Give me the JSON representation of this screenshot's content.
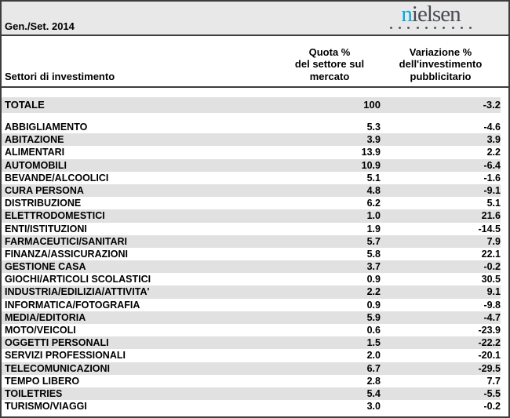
{
  "header": {
    "period": "Gen./Set. 2014",
    "logo": {
      "first_letter": "n",
      "rest": "ielsen",
      "dot_count": 10,
      "blue": "#00a9e0",
      "dark": "#474b52"
    }
  },
  "table": {
    "col1_header": "Settori di investimento",
    "col2_header_lines": [
      "Quota %",
      "del settore sul",
      "mercato"
    ],
    "col3_header_lines": [
      "Variazione %",
      "dell'investimento",
      "pubblicitario"
    ],
    "total": {
      "label": "TOTALE",
      "quota": "100",
      "variazione": "-3.2"
    },
    "rows": [
      {
        "label": "ABBIGLIAMENTO",
        "quota": "5.3",
        "variazione": "-4.6"
      },
      {
        "label": "ABITAZIONE",
        "quota": "3.9",
        "variazione": "3.9"
      },
      {
        "label": "ALIMENTARI",
        "quota": "13.9",
        "variazione": "2.2"
      },
      {
        "label": "AUTOMOBILI",
        "quota": "10.9",
        "variazione": "-6.4"
      },
      {
        "label": "BEVANDE/ALCOOLICI",
        "quota": "5.1",
        "variazione": "-1.6"
      },
      {
        "label": "CURA PERSONA",
        "quota": "4.8",
        "variazione": "-9.1"
      },
      {
        "label": "DISTRIBUZIONE",
        "quota": "6.2",
        "variazione": "5.1"
      },
      {
        "label": "ELETTRODOMESTICI",
        "quota": "1.0",
        "variazione": "21.6"
      },
      {
        "label": "ENTI/ISTITUZIONI",
        "quota": "1.9",
        "variazione": "-14.5"
      },
      {
        "label": "FARMACEUTICI/SANITARI",
        "quota": "5.7",
        "variazione": "7.9"
      },
      {
        "label": "FINANZA/ASSICURAZIONI",
        "quota": "5.8",
        "variazione": "22.1"
      },
      {
        "label": "GESTIONE CASA",
        "quota": "3.7",
        "variazione": "-0.2"
      },
      {
        "label": "GIOCHI/ARTICOLI SCOLASTICI",
        "quota": "0.9",
        "variazione": "30.5"
      },
      {
        "label": "INDUSTRIA/EDILIZIA/ATTIVITA'",
        "quota": "2.2",
        "variazione": "9.1"
      },
      {
        "label": "INFORMATICA/FOTOGRAFIA",
        "quota": "0.9",
        "variazione": "-9.8"
      },
      {
        "label": "MEDIA/EDITORIA",
        "quota": "5.9",
        "variazione": "-4.7"
      },
      {
        "label": "MOTO/VEICOLI",
        "quota": "0.6",
        "variazione": "-23.9"
      },
      {
        "label": "OGGETTI PERSONALI",
        "quota": "1.5",
        "variazione": "-22.2"
      },
      {
        "label": "SERVIZI PROFESSIONALI",
        "quota": "2.0",
        "variazione": "-20.1"
      },
      {
        "label": "TELECOMUNICAZIONI",
        "quota": "6.7",
        "variazione": "-29.5"
      },
      {
        "label": "TEMPO LIBERO",
        "quota": "2.8",
        "variazione": "7.7"
      },
      {
        "label": "TOILETRIES",
        "quota": "5.4",
        "variazione": "-5.5"
      },
      {
        "label": "TURISMO/VIAGGI",
        "quota": "3.0",
        "variazione": "-0.2"
      }
    ]
  },
  "colors": {
    "band_bg": "#e8e8e8",
    "stripe_bg": "#e1e1e1",
    "border": "#3d3d3d",
    "logo_blue": "#00a9e0",
    "logo_dark": "#474b52"
  },
  "chart_data": {
    "type": "table",
    "title": "Gen./Set. 2014",
    "columns": [
      "Settori di investimento",
      "Quota % del settore sul mercato",
      "Variazione % dell'investimento pubblicitario"
    ],
    "rows": [
      [
        "TOTALE",
        100,
        -3.2
      ],
      [
        "ABBIGLIAMENTO",
        5.3,
        -4.6
      ],
      [
        "ABITAZIONE",
        3.9,
        3.9
      ],
      [
        "ALIMENTARI",
        13.9,
        2.2
      ],
      [
        "AUTOMOBILI",
        10.9,
        -6.4
      ],
      [
        "BEVANDE/ALCOOLICI",
        5.1,
        -1.6
      ],
      [
        "CURA PERSONA",
        4.8,
        -9.1
      ],
      [
        "DISTRIBUZIONE",
        6.2,
        5.1
      ],
      [
        "ELETTRODOMESTICI",
        1.0,
        21.6
      ],
      [
        "ENTI/ISTITUZIONI",
        1.9,
        -14.5
      ],
      [
        "FARMACEUTICI/SANITARI",
        5.7,
        7.9
      ],
      [
        "FINANZA/ASSICURAZIONI",
        5.8,
        22.1
      ],
      [
        "GESTIONE CASA",
        3.7,
        -0.2
      ],
      [
        "GIOCHI/ARTICOLI SCOLASTICI",
        0.9,
        30.5
      ],
      [
        "INDUSTRIA/EDILIZIA/ATTIVITA'",
        2.2,
        9.1
      ],
      [
        "INFORMATICA/FOTOGRAFIA",
        0.9,
        -9.8
      ],
      [
        "MEDIA/EDITORIA",
        5.9,
        -4.7
      ],
      [
        "MOTO/VEICOLI",
        0.6,
        -23.9
      ],
      [
        "OGGETTI PERSONALI",
        1.5,
        -22.2
      ],
      [
        "SERVIZI PROFESSIONALI",
        2.0,
        -20.1
      ],
      [
        "TELECOMUNICAZIONI",
        6.7,
        -29.5
      ],
      [
        "TEMPO LIBERO",
        2.8,
        7.7
      ],
      [
        "TOILETRIES",
        5.4,
        -5.5
      ],
      [
        "TURISMO/VIAGGI",
        3.0,
        -0.2
      ]
    ]
  }
}
